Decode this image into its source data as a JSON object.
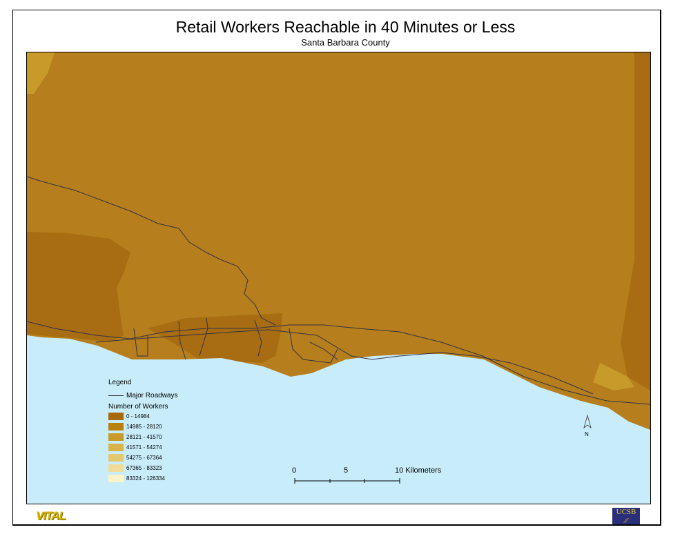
{
  "title": "Retail Workers Reachable in 40 Minutes or Less",
  "subtitle": "Santa Barbara County",
  "legend": {
    "heading": "Legend",
    "roads_label": "Major Roadways",
    "classes_heading": "Number of Workers",
    "classes": [
      {
        "label": "0 - 14984",
        "color": "#a8690c"
      },
      {
        "label": "14985 - 28120",
        "color": "#b8800f"
      },
      {
        "label": "28121 - 41570",
        "color": "#c89a2a"
      },
      {
        "label": "41571 - 54274",
        "color": "#d8b448"
      },
      {
        "label": "54275 - 67364",
        "color": "#e4c870"
      },
      {
        "label": "67365 - 83323",
        "color": "#f0dc98"
      },
      {
        "label": "83324 - 126334",
        "color": "#fcf4c8"
      }
    ]
  },
  "scale": {
    "ticks": [
      "0",
      "5",
      "10 Kilometers"
    ]
  },
  "north_label": "N",
  "colors": {
    "ocean": "#c8ecfa",
    "land": "#b67e1c",
    "land_dark": "#a86c12",
    "road": "#333344"
  },
  "logos": {
    "left": "VITAL",
    "right": "UCSB"
  }
}
